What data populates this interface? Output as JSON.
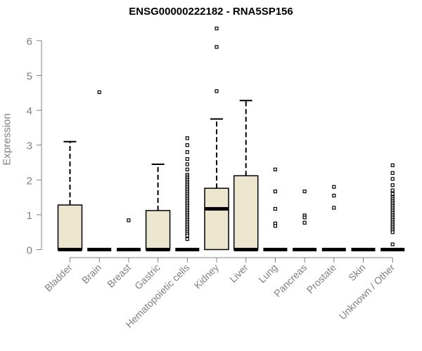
{
  "chart_data": {
    "type": "box",
    "title": "ENSG00000222182 - RNA5SP156",
    "xlabel": "",
    "ylabel": "Expression",
    "ylim": [
      0,
      6.5
    ],
    "yticks": [
      0,
      1,
      2,
      3,
      4,
      5,
      6
    ],
    "grid": false,
    "legend": "none",
    "colors": {
      "box_fill": "#ede6cf",
      "stroke": "#000000",
      "axis": "#808080",
      "label": "#808080",
      "title": "#000000"
    },
    "categories": [
      "Bladder",
      "Brain",
      "Breast",
      "Gastric",
      "Hematopoietic cells",
      "Kidney",
      "Liver",
      "Lung",
      "Pancreas",
      "Prostate",
      "Skin",
      "Unknown / Other"
    ],
    "boxes": [
      {
        "category": "Bladder",
        "min": 0,
        "q1": 0,
        "median": 0,
        "q3": 1.28,
        "max": 3.1,
        "outliers": []
      },
      {
        "category": "Brain",
        "min": 0,
        "q1": 0,
        "median": 0,
        "q3": 0,
        "max": 0,
        "outliers": [
          4.52
        ]
      },
      {
        "category": "Breast",
        "min": 0,
        "q1": 0,
        "median": 0,
        "q3": 0,
        "max": 0,
        "outliers": [
          0.84
        ]
      },
      {
        "category": "Gastric",
        "min": 0,
        "q1": 0,
        "median": 0,
        "q3": 1.12,
        "max": 2.45,
        "outliers": []
      },
      {
        "category": "Hematopoietic cells",
        "min": 0,
        "q1": 0,
        "median": 0,
        "q3": 0,
        "max": 0,
        "outliers": [
          3.2,
          3.0,
          2.8,
          2.6,
          2.45,
          2.3,
          2.15,
          2.1,
          2.05,
          2.0,
          1.95,
          1.9,
          1.85,
          1.8,
          1.75,
          1.7,
          1.65,
          1.6,
          1.55,
          1.5,
          1.45,
          1.4,
          1.35,
          1.3,
          1.25,
          1.2,
          1.15,
          1.1,
          1.05,
          1.0,
          0.95,
          0.9,
          0.85,
          0.8,
          0.75,
          0.7,
          0.65,
          0.6,
          0.55,
          0.5,
          0.45,
          0.4,
          0.3
        ]
      },
      {
        "category": "Kidney",
        "min": 0,
        "q1": 0,
        "median": 1.17,
        "q3": 1.76,
        "max": 3.75,
        "outliers": [
          6.35,
          5.82,
          4.55
        ]
      },
      {
        "category": "Liver",
        "min": 0,
        "q1": 0,
        "median": 0,
        "q3": 2.12,
        "max": 4.28,
        "outliers": []
      },
      {
        "category": "Lung",
        "min": 0,
        "q1": 0,
        "median": 0,
        "q3": 0,
        "max": 0,
        "outliers": [
          2.3,
          1.67,
          1.17,
          0.75,
          0.68
        ]
      },
      {
        "category": "Pancreas",
        "min": 0,
        "q1": 0,
        "median": 0,
        "q3": 0,
        "max": 0,
        "outliers": [
          1.67,
          0.98,
          0.92,
          0.77
        ]
      },
      {
        "category": "Prostate",
        "min": 0,
        "q1": 0,
        "median": 0,
        "q3": 0,
        "max": 0,
        "outliers": [
          1.8,
          1.55,
          1.2
        ]
      },
      {
        "category": "Skin",
        "min": 0,
        "q1": 0,
        "median": 0,
        "q3": 0,
        "max": 0,
        "outliers": []
      },
      {
        "category": "Unknown / Other",
        "min": 0,
        "q1": 0,
        "median": 0,
        "q3": 0,
        "max": 0,
        "outliers": [
          2.42,
          2.2,
          2.03,
          1.85,
          1.7,
          1.6,
          1.5,
          1.45,
          1.4,
          1.35,
          1.3,
          1.25,
          1.2,
          1.15,
          1.1,
          1.05,
          1.0,
          0.95,
          0.9,
          0.85,
          0.8,
          0.75,
          0.7,
          0.65,
          0.6,
          0.55,
          0.5,
          0.15
        ]
      }
    ]
  }
}
